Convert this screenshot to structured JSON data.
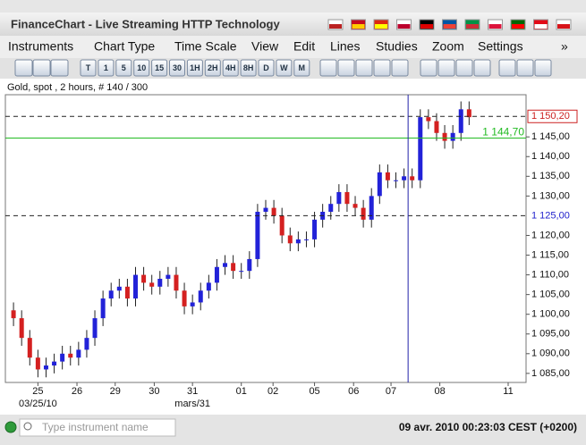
{
  "window": {
    "title": "FinanceChart - Live Streaming HTTP Technology"
  },
  "menu": [
    "Instruments",
    "Chart Type",
    "Time Scale",
    "View",
    "Edit",
    "Lines",
    "Studies",
    "Zoom",
    "Settings",
    "»"
  ],
  "toolbar": [
    "T",
    "1",
    "5",
    "10",
    "15",
    "30",
    "1H",
    "2H",
    "4H",
    "8H",
    "D",
    "W",
    "M"
  ],
  "chart": {
    "title": "Gold, spot , 2 hours, # 140 / 300",
    "type": "candlestick",
    "up_color": "#2222d8",
    "down_color": "#d42020",
    "open": [
      1101,
      1099,
      1094,
      1089,
      1086,
      1087,
      1088,
      1090,
      1089,
      1091,
      1094,
      1099,
      1104,
      1106,
      1107,
      1104,
      1110,
      1108,
      1107,
      1109,
      1110,
      1106,
      1102,
      1103,
      1106,
      1108,
      1112,
      1113,
      1111,
      1111,
      1114,
      1126,
      1127,
      1125,
      1120,
      1118,
      1119,
      1119,
      1124,
      1126,
      1128,
      1131,
      1128,
      1127,
      1124,
      1130,
      1136,
      1134,
      1134,
      1135,
      1134,
      1150,
      1149,
      1146,
      1144,
      1146,
      1152
    ],
    "high": [
      1103,
      1101,
      1096,
      1091,
      1089,
      1090,
      1092,
      1092,
      1093,
      1096,
      1101,
      1106,
      1108,
      1109,
      1109,
      1112,
      1112,
      1110,
      1111,
      1112,
      1112,
      1108,
      1105,
      1108,
      1110,
      1114,
      1115,
      1115,
      1113,
      1116,
      1128,
      1129,
      1129,
      1127,
      1122,
      1121,
      1121,
      1126,
      1128,
      1130,
      1133,
      1133,
      1130,
      1129,
      1132,
      1138,
      1138,
      1136,
      1137,
      1137,
      1152,
      1152,
      1151,
      1148,
      1148,
      1154,
      1154
    ],
    "low": [
      1097,
      1092,
      1087,
      1084,
      1084,
      1085,
      1086,
      1087,
      1087,
      1089,
      1092,
      1097,
      1102,
      1104,
      1102,
      1102,
      1106,
      1105,
      1105,
      1107,
      1104,
      1100,
      1100,
      1101,
      1104,
      1106,
      1110,
      1109,
      1109,
      1109,
      1112,
      1124,
      1123,
      1118,
      1116,
      1116,
      1117,
      1117,
      1122,
      1124,
      1126,
      1126,
      1125,
      1122,
      1122,
      1128,
      1132,
      1132,
      1132,
      1132,
      1132,
      1147,
      1144,
      1142,
      1142,
      1144,
      1148
    ],
    "close": [
      1099,
      1094,
      1089,
      1086,
      1087,
      1088,
      1090,
      1089,
      1091,
      1094,
      1099,
      1104,
      1106,
      1107,
      1104,
      1110,
      1108,
      1107,
      1109,
      1110,
      1106,
      1102,
      1103,
      1106,
      1108,
      1112,
      1113,
      1111,
      1111,
      1114,
      1126,
      1127,
      1125,
      1120,
      1118,
      1119,
      1119,
      1124,
      1126,
      1128,
      1131,
      1128,
      1127,
      1124,
      1130,
      1136,
      1134,
      1134,
      1135,
      1134,
      1150,
      1149,
      1146,
      1144,
      1146,
      1152,
      1150
    ],
    "xlim": [
      -1,
      63
    ],
    "ylim": [
      1082.7,
      1155.7
    ],
    "yticks": [
      {
        "value": 1085,
        "label": "1 085,00"
      },
      {
        "value": 1090,
        "label": "1 090,00"
      },
      {
        "value": 1095,
        "label": "1 095,00"
      },
      {
        "value": 1100,
        "label": "1 100,00"
      },
      {
        "value": 1105,
        "label": "1 105,00"
      },
      {
        "value": 1110,
        "label": "1 110,00"
      },
      {
        "value": 1115,
        "label": "1 115,00"
      },
      {
        "value": 1120,
        "label": "1 120,00"
      },
      {
        "value": 1130,
        "label": "1 130,00"
      },
      {
        "value": 1135,
        "label": "1 135,00"
      },
      {
        "value": 1140,
        "label": "1 140,00"
      },
      {
        "value": 1145,
        "label": "1 145,00"
      }
    ],
    "xticks": [
      {
        "value": 3,
        "label": "25"
      },
      {
        "value": 7.8,
        "label": "26"
      },
      {
        "value": 12.5,
        "label": "29"
      },
      {
        "value": 17.3,
        "label": "30"
      },
      {
        "value": 22,
        "label": "31"
      },
      {
        "value": 28,
        "label": "01"
      },
      {
        "value": 31.9,
        "label": "02"
      },
      {
        "value": 37,
        "label": "05"
      },
      {
        "value": 41.8,
        "label": "06"
      },
      {
        "value": 46.4,
        "label": "07"
      },
      {
        "value": 52.4,
        "label": "08"
      },
      {
        "value": 60.8,
        "label": "11"
      }
    ],
    "date_labels": [
      {
        "value": 3,
        "label": "03/25/10"
      },
      {
        "value": 22,
        "label": "mars/31"
      }
    ],
    "levels": [
      {
        "value": 1150.2,
        "label": "1 150,20",
        "color": "#cc2222",
        "style": "dashed"
      },
      {
        "value": 1144.7,
        "label": "1 144,70",
        "color": "#22bb22",
        "style": "solid"
      },
      {
        "value": 1125,
        "label": "1 125,00",
        "color": "#2222cc",
        "style": "dashed"
      }
    ],
    "cursor_x": 48.5
  },
  "status": {
    "search_placeholder": "Type instrument name",
    "datetime": "09 avr. 2010 00:23:03  CEST (+0200)"
  }
}
